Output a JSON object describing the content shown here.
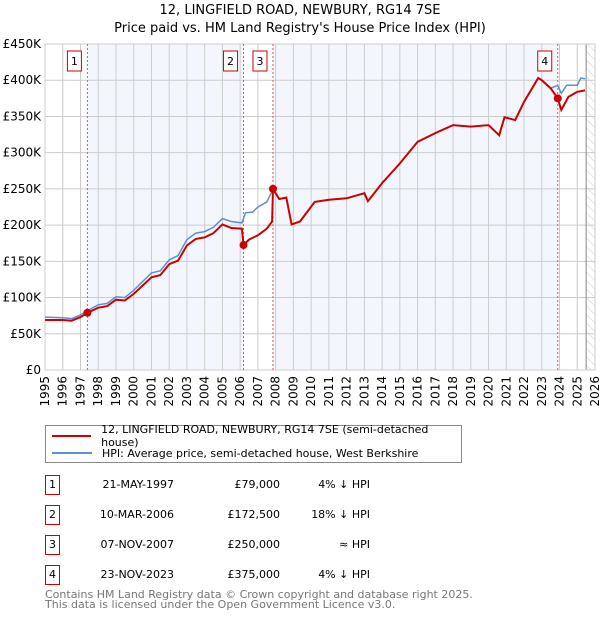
{
  "chart_data": {
    "type": "line",
    "title": "12, LINGFIELD ROAD, NEWBURY, RG14 7SE",
    "subtitle": "Price paid vs. HM Land Registry's House Price Index (HPI)",
    "xlim": [
      1995,
      2026
    ],
    "ylim": [
      0,
      450000
    ],
    "yticks": [
      {
        "v": 0,
        "label": "£0"
      },
      {
        "v": 50000,
        "label": "£50K"
      },
      {
        "v": 100000,
        "label": "£100K"
      },
      {
        "v": 150000,
        "label": "£150K"
      },
      {
        "v": 200000,
        "label": "£200K"
      },
      {
        "v": 250000,
        "label": "£250K"
      },
      {
        "v": 300000,
        "label": "£300K"
      },
      {
        "v": 350000,
        "label": "£350K"
      },
      {
        "v": 400000,
        "label": "£400K"
      },
      {
        "v": 450000,
        "label": "£450K"
      }
    ],
    "xticks": [
      "1995",
      "1996",
      "1997",
      "1998",
      "1999",
      "2000",
      "2001",
      "2002",
      "2003",
      "2004",
      "2005",
      "2006",
      "2007",
      "2008",
      "2009",
      "2010",
      "2011",
      "2012",
      "2013",
      "2014",
      "2015",
      "2016",
      "2017",
      "2018",
      "2019",
      "2020",
      "2021",
      "2022",
      "2023",
      "2024",
      "2025",
      "2026"
    ],
    "series": [
      {
        "name": "HPI: Average price, semi-detached house, West Berkshire",
        "color": "#5b8fd6",
        "x": [
          1995,
          1996,
          1996.5,
          1997,
          1997.4,
          1998,
          1998.5,
          1999,
          1999.5,
          2000,
          2001,
          2001.5,
          2002,
          2002.5,
          2003,
          2003.5,
          2004,
          2004.5,
          2005,
          2005.5,
          2006.1,
          2006.3,
          2006.7,
          2007,
          2007.5,
          2007.85,
          2008.2,
          2008.6,
          2008.9,
          2009.37,
          2010.2,
          2011,
          2012,
          2013,
          2013.2,
          2014,
          2015,
          2016,
          2017,
          2018,
          2019,
          2020,
          2020.6,
          2020.9,
          2021.5,
          2022,
          2022.8,
          2023,
          2023.5,
          2023.9,
          2024.1,
          2024.4,
          2025,
          2025.2,
          2025.44
        ],
        "y": [
          73000,
          72000,
          71000,
          76000,
          82000,
          90000,
          92000,
          101000,
          100000,
          110000,
          134000,
          137000,
          152000,
          158000,
          180000,
          189000,
          191000,
          197000,
          209000,
          205000,
          203000,
          217000,
          218000,
          225000,
          232000,
          249000,
          236000,
          238000,
          201000,
          205000,
          232000,
          235000,
          237000,
          244000,
          233000,
          258000,
          285000,
          315000,
          327000,
          338000,
          336000,
          338000,
          324000,
          349000,
          345000,
          370000,
          403000,
          400000,
          389000,
          393000,
          382000,
          393000,
          393000,
          403000,
          402000
        ]
      },
      {
        "name": "12, LINGFIELD ROAD, NEWBURY, RG14 7SE (semi-detached house)",
        "color": "#cc0000",
        "x": [
          1995,
          1996,
          1996.5,
          1997,
          1997.4,
          1998,
          1998.5,
          1999,
          1999.5,
          2000,
          2001,
          2001.5,
          2002,
          2002.5,
          2003,
          2003.5,
          2004,
          2004.5,
          2005,
          2005.5,
          2006.1,
          2006.19,
          2006.5,
          2007,
          2007.5,
          2007.8,
          2007.85,
          2008.2,
          2008.6,
          2008.9,
          2009.37,
          2010.2,
          2011,
          2012,
          2013,
          2013.2,
          2014,
          2015,
          2016,
          2017,
          2018,
          2019,
          2020,
          2020.6,
          2020.9,
          2021.5,
          2022,
          2022.8,
          2023,
          2023.5,
          2023.9,
          2024.1,
          2024.5,
          2025,
          2025.44
        ],
        "y": [
          69000,
          69000,
          68000,
          73000,
          79000,
          86000,
          88000,
          97000,
          96000,
          105000,
          128000,
          131000,
          146000,
          151000,
          172000,
          181000,
          183000,
          189000,
          201000,
          196000,
          195000,
          172500,
          180000,
          186000,
          195000,
          205000,
          250000,
          236000,
          238000,
          201000,
          205000,
          232000,
          235000,
          237000,
          244000,
          233000,
          258000,
          285000,
          315000,
          327000,
          338000,
          336000,
          338000,
          324000,
          349000,
          345000,
          370000,
          403000,
          400000,
          389000,
          375000,
          359000,
          377000,
          384000,
          386000
        ]
      }
    ],
    "sales": [
      {
        "n": "1",
        "date": "21-MAY-1997",
        "x": 1997.39,
        "price": "£79,000",
        "price_v": 79000,
        "rel": "4% ↓ HPI"
      },
      {
        "n": "2",
        "date": "10-MAR-2006",
        "x": 2006.19,
        "price": "£172,500",
        "price_v": 172500,
        "rel": "18% ↓ HPI"
      },
      {
        "n": "3",
        "date": "07-NOV-2007",
        "x": 2007.85,
        "price": "£250,000",
        "price_v": 250000,
        "rel": "≈ HPI"
      },
      {
        "n": "4",
        "date": "23-NOV-2023",
        "x": 2023.9,
        "price": "£375,000",
        "price_v": 375000,
        "rel": "4% ↓ HPI"
      }
    ],
    "forecast_start": 2025.5,
    "legend": {
      "placement": "below",
      "items": [
        "12, LINGFIELD ROAD, NEWBURY, RG14 7SE (semi-detached house)",
        "HPI: Average price, semi-detached house, West Berkshire"
      ]
    }
  },
  "footer": {
    "line1": "Contains HM Land Registry data © Crown copyright and database right 2025.",
    "line2": "This data is licensed under the Open Government Licence v3.0."
  }
}
